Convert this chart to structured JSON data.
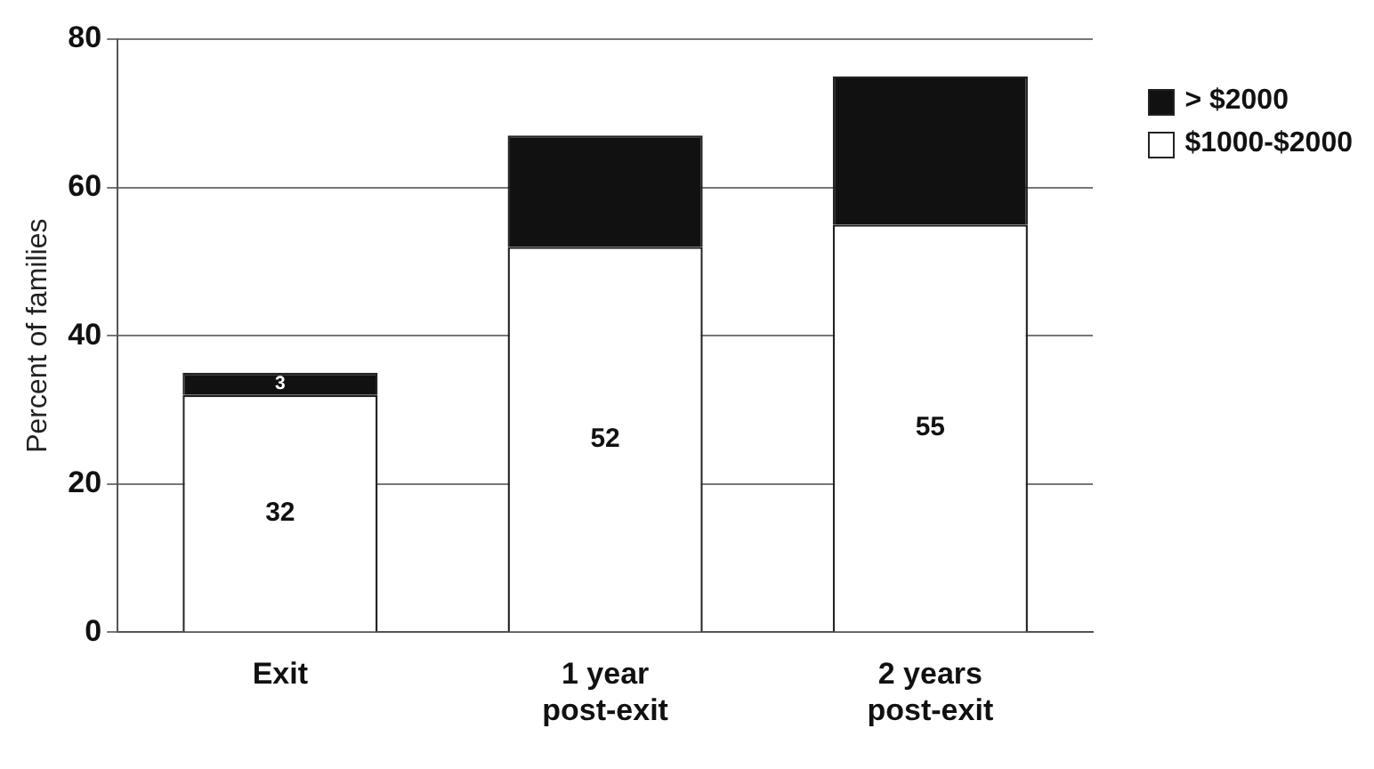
{
  "chart_data": {
    "type": "bar",
    "stacked": true,
    "ylabel": "Percent of families",
    "categories": [
      "Exit",
      "1 year post-exit",
      "2 years post-exit"
    ],
    "series": [
      {
        "name": "$1000-$2000",
        "color": "#ffffff",
        "values": [
          32,
          52,
          55
        ],
        "value_labels": [
          "32",
          "52",
          "55"
        ]
      },
      {
        "name": "> $2000",
        "color": "#111111",
        "values": [
          3,
          15,
          20
        ],
        "value_labels": [
          "3",
          null,
          null
        ]
      }
    ],
    "ylim": [
      0,
      80
    ],
    "yticks": [
      0,
      20,
      40,
      60,
      80
    ],
    "grid": "y",
    "legend": "right"
  }
}
